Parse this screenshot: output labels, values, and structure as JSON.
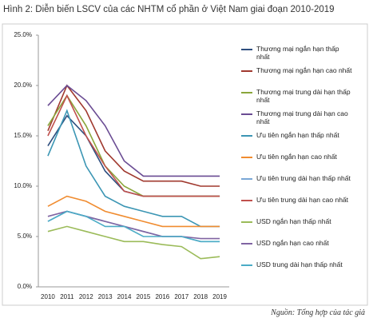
{
  "chart_data": {
    "type": "line",
    "title": "Hình 2: Diễn biến LSCV của các NHTM cổ phần ở Việt Nam giai đoạn 2010-2019",
    "source": "Nguồn: Tổng hợp của tác giả",
    "categories": [
      "2010",
      "2011",
      "2012",
      "2013",
      "2014",
      "2015",
      "2016",
      "2017",
      "2018",
      "2019"
    ],
    "ylim": [
      0,
      25
    ],
    "yticks": [
      {
        "value": 0,
        "label": "0.0%"
      },
      {
        "value": 5,
        "label": "5.0%"
      },
      {
        "value": 10,
        "label": "10.0%"
      },
      {
        "value": 15,
        "label": "15.0%"
      },
      {
        "value": 20,
        "label": "20.0%"
      },
      {
        "value": 25,
        "label": "25.0%"
      }
    ],
    "series": [
      {
        "name": "Thương mại ngắn hạn thấp nhất",
        "color": "#2f4f7f",
        "values": [
          14,
          17,
          15,
          11.5,
          9.5,
          9,
          9,
          9,
          9,
          9
        ]
      },
      {
        "name": "Thương mại ngắn hạn cao nhất",
        "color": "#a0392f",
        "values": [
          15.5,
          20,
          17.5,
          13.5,
          11.5,
          10.5,
          10.5,
          10.5,
          10,
          10
        ]
      },
      {
        "name": "Thương mại trung dài hạn thấp nhất",
        "color": "#8aa63b",
        "values": [
          16,
          19,
          16,
          12,
          10,
          9,
          9,
          9,
          9,
          9
        ]
      },
      {
        "name": "Thương mại trung dài hạn cao nhất",
        "color": "#6a4c93",
        "values": [
          18,
          20,
          18.5,
          16,
          12.5,
          11,
          11,
          11,
          11,
          11
        ]
      },
      {
        "name": "Ưu tiên ngắn hạn thấp nhất",
        "color": "#3c96b4",
        "values": [
          13,
          17.5,
          12,
          9,
          8,
          7.5,
          7,
          7,
          6,
          6
        ]
      },
      {
        "name": "Ưu tiên ngắn hạn cao nhất",
        "color": "#f08c30",
        "values": [
          8,
          9,
          8.5,
          7.5,
          7,
          6.5,
          6,
          6,
          6,
          6
        ]
      },
      {
        "name": "Ưu tiên trung dài hạn thấp nhất",
        "color": "#7aa7d6",
        "values": [
          6.5,
          7.5,
          7,
          6.5,
          6,
          5.5,
          5,
          5,
          4.5,
          4.5
        ]
      },
      {
        "name": "Ưu tiên trung dài hạn cao nhất",
        "color": "#c0504d",
        "values": [
          15,
          19,
          15,
          12,
          9.5,
          9,
          9,
          9,
          9,
          9
        ]
      },
      {
        "name": "USD ngắn hạn thấp nhất",
        "color": "#9bbb59",
        "values": [
          5.5,
          6,
          5.5,
          5,
          4.5,
          4.5,
          4.2,
          4,
          2.8,
          3
        ]
      },
      {
        "name": "USD ngắn hạn cao nhất",
        "color": "#8064a2",
        "values": [
          7,
          7.5,
          7,
          6.5,
          6,
          5.5,
          5,
          5,
          4.8,
          4.8
        ]
      },
      {
        "name": "USD trung dài hạn thấp nhất",
        "color": "#4bacc6",
        "values": [
          6.5,
          7.5,
          7,
          6,
          6,
          5,
          5,
          5,
          4.5,
          4.5
        ]
      }
    ]
  }
}
